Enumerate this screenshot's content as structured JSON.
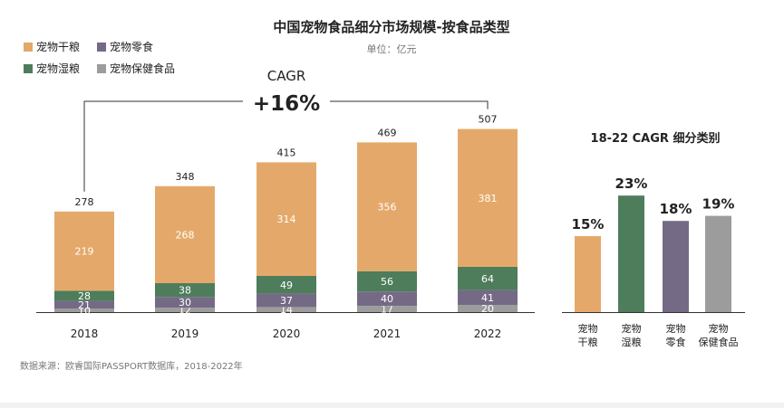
{
  "title": "中国宠物食品细分市场规模-按食品类型",
  "unit": "单位：亿元",
  "source": "数据来源：欧睿国际PASSPORT数据库，2018-2022年",
  "cagr": {
    "label": "CAGR",
    "value": "+16%"
  },
  "colors": {
    "dry": "#E4A96A",
    "wet": "#4E7D5B",
    "snack": "#756A86",
    "health": "#9C9C9C"
  },
  "chart_data": [
    {
      "type": "bar",
      "stacked": true,
      "title": "中国宠物食品细分市场规模-按食品类型",
      "unit": "亿元",
      "categories": [
        "2018",
        "2019",
        "2020",
        "2021",
        "2022"
      ],
      "series": [
        {
          "name": "宠物保健食品",
          "key": "health",
          "values": [
            10,
            12,
            14,
            17,
            20
          ]
        },
        {
          "name": "宠物零食",
          "key": "snack",
          "values": [
            21,
            30,
            37,
            40,
            41
          ]
        },
        {
          "name": "宠物湿粮",
          "key": "wet",
          "values": [
            28,
            38,
            49,
            56,
            64
          ]
        },
        {
          "name": "宠物干粮",
          "key": "dry",
          "values": [
            219,
            268,
            314,
            356,
            381
          ]
        }
      ],
      "totals": [
        278,
        348,
        415,
        469,
        507
      ],
      "legend": [
        {
          "name": "宠物干粮",
          "key": "dry"
        },
        {
          "name": "宠物零食",
          "key": "snack"
        },
        {
          "name": "宠物湿粮",
          "key": "wet"
        },
        {
          "name": "宠物保健食品",
          "key": "health"
        }
      ],
      "legend_position": "top-left",
      "grid": false
    },
    {
      "type": "bar",
      "title": "18-22 CAGR 细分类别",
      "categories": [
        {
          "line1": "宠物",
          "line2": "干粮",
          "key": "dry"
        },
        {
          "line1": "宠物",
          "line2": "湿粮",
          "key": "wet"
        },
        {
          "line1": "宠物",
          "line2": "零食",
          "key": "snack"
        },
        {
          "line1": "宠物",
          "line2": "保健食品",
          "key": "health"
        }
      ],
      "values": [
        15,
        23,
        18,
        19
      ],
      "labels": [
        "15%",
        "23%",
        "18%",
        "19%"
      ],
      "unit": "%",
      "grid": false
    }
  ]
}
